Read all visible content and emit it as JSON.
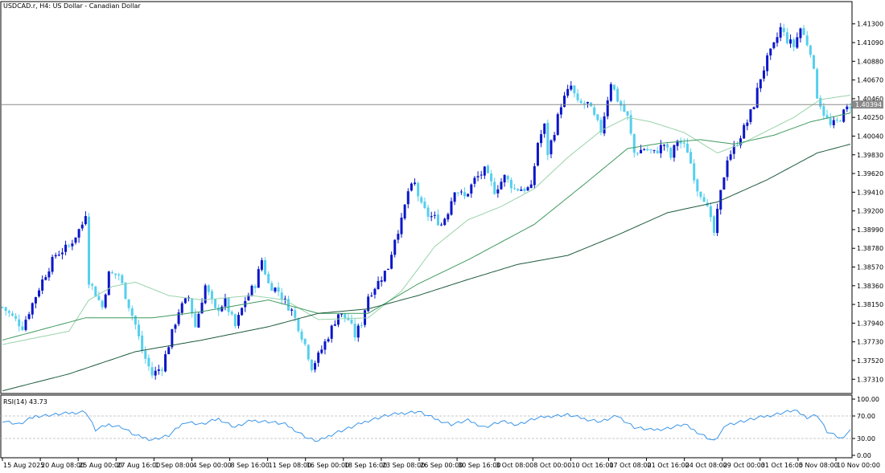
{
  "chart_title": "USDCAD.r, H4:  US Dollar - Canadian Dollar",
  "rsi_label": "RSI(14) 43.73",
  "current_price_label": "1.40394",
  "chart_data": [
    {
      "type": "candlestick",
      "title": "USDCAD.r, H4:  US Dollar - Canadian Dollar",
      "y_ticks": [
        "1.41300",
        "1.41090",
        "1.40880",
        "1.40670",
        "1.40460",
        "1.40250",
        "1.40040",
        "1.39830",
        "1.39620",
        "1.39410",
        "1.39200",
        "1.38990",
        "1.38780",
        "1.38570",
        "1.38360",
        "1.38150",
        "1.37940",
        "1.37730",
        "1.37520",
        "1.37310"
      ],
      "x_ticks": [
        "15 Aug 2025",
        "20 Aug 08:00",
        "25 Aug 00:00",
        "27 Aug 16:00",
        "1 Sep 08:00",
        "4 Sep 00:00",
        "8 Sep 16:00",
        "11 Sep 08:00",
        "16 Sep 00:00",
        "18 Sep 16:00",
        "23 Sep 08:00",
        "26 Sep 00:00",
        "30 Sep 16:00",
        "3 Oct 08:00",
        "8 Oct 00:00",
        "10 Oct 16:00",
        "17 Oct 08:00",
        "21 Oct 16:00",
        "24 Oct 08:00",
        "29 Oct 00:00",
        "31 Oct 16:00",
        "5 Nov 08:00",
        "10 Nov 00:00"
      ],
      "ylim": [
        1.3715,
        1.4155
      ],
      "current_price": 1.40394,
      "close_path": [
        [
          0,
          1.3812
        ],
        [
          6,
          1.379
        ],
        [
          12,
          1.3842
        ],
        [
          16,
          1.3871
        ],
        [
          20,
          1.388
        ],
        [
          24,
          1.3905
        ],
        [
          25,
          1.3918
        ],
        [
          26,
          1.3842
        ],
        [
          30,
          1.3812
        ],
        [
          32,
          1.3849
        ],
        [
          35,
          1.3848
        ],
        [
          38,
          1.3814
        ],
        [
          40,
          1.3792
        ],
        [
          42,
          1.3763
        ],
        [
          45,
          1.3736
        ],
        [
          48,
          1.3745
        ],
        [
          50,
          1.377
        ],
        [
          53,
          1.3808
        ],
        [
          56,
          1.3823
        ],
        [
          58,
          1.379
        ],
        [
          61,
          1.3836
        ],
        [
          64,
          1.3808
        ],
        [
          67,
          1.3818
        ],
        [
          70,
          1.379
        ],
        [
          73,
          1.382
        ],
        [
          76,
          1.3838
        ],
        [
          78,
          1.3865
        ],
        [
          80,
          1.3838
        ],
        [
          83,
          1.383
        ],
        [
          85,
          1.3818
        ],
        [
          87,
          1.3808
        ],
        [
          89,
          1.379
        ],
        [
          91,
          1.377
        ],
        [
          93,
          1.3745
        ],
        [
          95,
          1.3757
        ],
        [
          98,
          1.378
        ],
        [
          101,
          1.3805
        ],
        [
          104,
          1.3798
        ],
        [
          106,
          1.378
        ],
        [
          108,
          1.3795
        ],
        [
          110,
          1.3825
        ],
        [
          113,
          1.384
        ],
        [
          116,
          1.3857
        ],
        [
          118,
          1.389
        ],
        [
          120,
          1.3908
        ],
        [
          122,
          1.3942
        ],
        [
          124,
          1.395
        ],
        [
          126,
          1.3925
        ],
        [
          128,
          1.3915
        ],
        [
          130,
          1.3912
        ],
        [
          132,
          1.3905
        ],
        [
          134,
          1.392
        ],
        [
          136,
          1.3945
        ],
        [
          139,
          1.3935
        ],
        [
          142,
          1.3955
        ],
        [
          145,
          1.3965
        ],
        [
          148,
          1.3943
        ],
        [
          151,
          1.3958
        ],
        [
          154,
          1.3945
        ],
        [
          157,
          1.3945
        ],
        [
          159,
          1.3945
        ],
        [
          161,
          1.3997
        ],
        [
          163,
          1.4015
        ],
        [
          164,
          1.3985
        ],
        [
          166,
          1.401
        ],
        [
          168,
          1.404
        ],
        [
          171,
          1.406
        ],
        [
          173,
          1.404
        ],
        [
          176,
          1.404
        ],
        [
          178,
          1.4025
        ],
        [
          180,
          1.401
        ],
        [
          183,
          1.4065
        ],
        [
          185,
          1.4045
        ],
        [
          188,
          1.4025
        ],
        [
          190,
          1.3985
        ],
        [
          193,
          1.399
        ],
        [
          196,
          1.3985
        ],
        [
          199,
          1.3995
        ],
        [
          201,
          1.398
        ],
        [
          203,
          1.4
        ],
        [
          206,
          1.3988
        ],
        [
          209,
          1.3945
        ],
        [
          211,
          1.3935
        ],
        [
          214,
          1.3895
        ],
        [
          216,
          1.394
        ],
        [
          218,
          1.398
        ],
        [
          220,
          1.399
        ],
        [
          222,
          1.4005
        ],
        [
          224,
          1.402
        ],
        [
          226,
          1.404
        ],
        [
          228,
          1.407
        ],
        [
          230,
          1.409
        ],
        [
          232,
          1.4105
        ],
        [
          234,
          1.4125
        ],
        [
          236,
          1.4112
        ],
        [
          238,
          1.4105
        ],
        [
          240,
          1.4125
        ],
        [
          243,
          1.41
        ],
        [
          245,
          1.405
        ],
        [
          247,
          1.403
        ],
        [
          249,
          1.4015
        ],
        [
          251,
          1.402
        ],
        [
          253,
          1.403
        ],
        [
          255,
          1.4039
        ]
      ],
      "series": [
        {
          "name": "",
          "values_ma_fast": [
            [
              0,
              1.377
            ],
            [
              20,
              1.3785
            ],
            [
              26,
              1.382
            ],
            [
              33,
              1.3835
            ],
            [
              40,
              1.384
            ],
            [
              50,
              1.3825
            ],
            [
              60,
              1.382
            ],
            [
              75,
              1.3825
            ],
            [
              85,
              1.382
            ],
            [
              95,
              1.3798
            ],
            [
              110,
              1.38
            ],
            [
              120,
              1.383
            ],
            [
              130,
              1.388
            ],
            [
              140,
              1.391
            ],
            [
              150,
              1.3925
            ],
            [
              160,
              1.3945
            ],
            [
              170,
              1.398
            ],
            [
              180,
              1.401
            ],
            [
              188,
              1.4025
            ],
            [
              195,
              1.402
            ],
            [
              205,
              1.4008
            ],
            [
              215,
              1.3985
            ],
            [
              222,
              1.3995
            ],
            [
              230,
              1.401
            ],
            [
              238,
              1.4025
            ],
            [
              246,
              1.4045
            ],
            [
              255,
              1.405
            ]
          ]
        },
        {
          "name": "",
          "values_ma_slow": [
            [
              0,
              1.3775
            ],
            [
              25,
              1.38
            ],
            [
              45,
              1.38
            ],
            [
              60,
              1.3807
            ],
            [
              80,
              1.382
            ],
            [
              95,
              1.3805
            ],
            [
              110,
              1.3805
            ],
            [
              125,
              1.3838
            ],
            [
              140,
              1.3865
            ],
            [
              160,
              1.3905
            ],
            [
              175,
              1.395
            ],
            [
              188,
              1.399
            ],
            [
              198,
              1.3996
            ],
            [
              210,
              1.4
            ],
            [
              220,
              1.3995
            ],
            [
              232,
              1.4005
            ],
            [
              243,
              1.402
            ],
            [
              255,
              1.403
            ]
          ]
        },
        {
          "name": "",
          "values_ma_long": [
            [
              0,
              1.3718
            ],
            [
              20,
              1.3737
            ],
            [
              40,
              1.3762
            ],
            [
              60,
              1.3775
            ],
            [
              80,
              1.379
            ],
            [
              95,
              1.3805
            ],
            [
              110,
              1.381
            ],
            [
              125,
              1.3825
            ],
            [
              140,
              1.3843
            ],
            [
              155,
              1.386
            ],
            [
              170,
              1.387
            ],
            [
              185,
              1.3893
            ],
            [
              200,
              1.3918
            ],
            [
              215,
              1.393
            ],
            [
              230,
              1.3955
            ],
            [
              245,
              1.3985
            ],
            [
              255,
              1.3995
            ]
          ]
        }
      ]
    },
    {
      "type": "line",
      "title": "RSI(14) 43.73",
      "y_ticks": [
        "100.00",
        "70.00",
        "30.00",
        "0.00"
      ],
      "ylim": [
        0,
        100
      ],
      "levels": [
        70,
        30
      ],
      "values": [
        [
          0,
          62
        ],
        [
          5,
          55
        ],
        [
          10,
          70
        ],
        [
          15,
          72
        ],
        [
          20,
          75
        ],
        [
          25,
          78
        ],
        [
          28,
          45
        ],
        [
          32,
          55
        ],
        [
          36,
          50
        ],
        [
          40,
          35
        ],
        [
          45,
          28
        ],
        [
          50,
          35
        ],
        [
          55,
          60
        ],
        [
          60,
          55
        ],
        [
          65,
          65
        ],
        [
          70,
          50
        ],
        [
          75,
          62
        ],
        [
          80,
          60
        ],
        [
          85,
          55
        ],
        [
          88,
          45
        ],
        [
          92,
          30
        ],
        [
          95,
          25
        ],
        [
          100,
          40
        ],
        [
          105,
          50
        ],
        [
          110,
          62
        ],
        [
          115,
          70
        ],
        [
          120,
          75
        ],
        [
          125,
          78
        ],
        [
          130,
          65
        ],
        [
          135,
          55
        ],
        [
          140,
          62
        ],
        [
          145,
          50
        ],
        [
          150,
          60
        ],
        [
          155,
          55
        ],
        [
          160,
          65
        ],
        [
          165,
          70
        ],
        [
          170,
          72
        ],
        [
          175,
          65
        ],
        [
          180,
          60
        ],
        [
          185,
          70
        ],
        [
          190,
          50
        ],
        [
          195,
          45
        ],
        [
          200,
          48
        ],
        [
          205,
          55
        ],
        [
          210,
          38
        ],
        [
          214,
          25
        ],
        [
          218,
          55
        ],
        [
          222,
          60
        ],
        [
          226,
          65
        ],
        [
          230,
          70
        ],
        [
          234,
          75
        ],
        [
          238,
          80
        ],
        [
          242,
          68
        ],
        [
          245,
          72
        ],
        [
          248,
          42
        ],
        [
          252,
          30
        ],
        [
          255,
          44
        ]
      ]
    }
  ],
  "colors": {
    "up_candle": "#0b16c8",
    "down_candle": "#55cfee",
    "ma_fast": "#99d3aa",
    "ma_slow": "#3f9a5f",
    "ma_long": "#1e5a3c",
    "rsi_line": "#3a95e8",
    "grid": "#c8c8c8"
  }
}
